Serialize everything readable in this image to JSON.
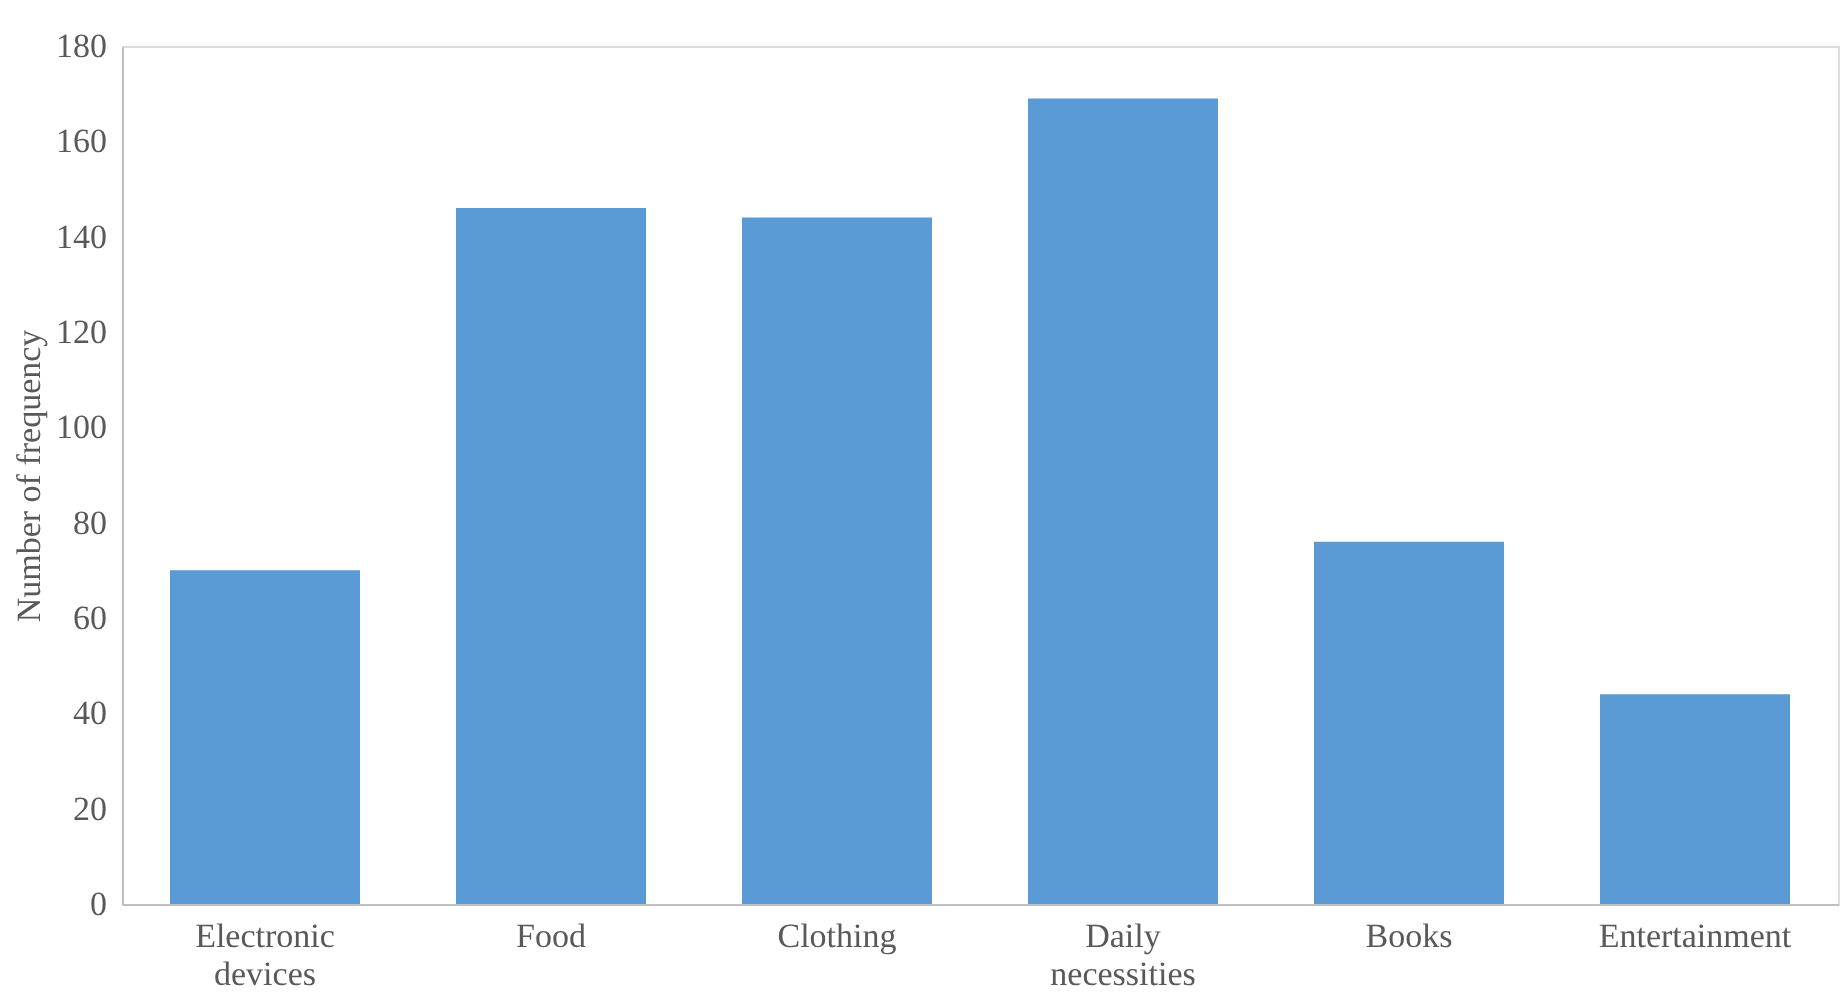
{
  "chart_data": {
    "type": "bar",
    "ylabel": "Number of frequency",
    "categories": [
      "Electronic devices",
      "Food",
      "Clothing",
      "Daily necessities",
      "Books",
      "Entertainment"
    ],
    "values": [
      70,
      146,
      144,
      169,
      76,
      44
    ],
    "color": "#5b9bd5",
    "ylim": [
      0,
      180
    ],
    "yticks": [
      0,
      20,
      40,
      60,
      80,
      100,
      120,
      140,
      160,
      180
    ],
    "grid": false
  }
}
